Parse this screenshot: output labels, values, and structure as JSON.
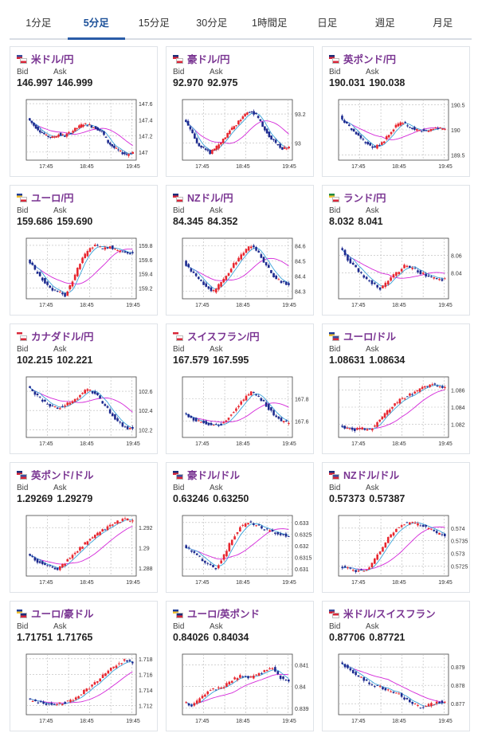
{
  "tabs": [
    {
      "label": "1分足",
      "active": false
    },
    {
      "label": "5分足",
      "active": true
    },
    {
      "label": "15分足",
      "active": false
    },
    {
      "label": "30分足",
      "active": false
    },
    {
      "label": "1時間足",
      "active": false
    },
    {
      "label": "日足",
      "active": false
    },
    {
      "label": "週足",
      "active": false
    },
    {
      "label": "月足",
      "active": false
    }
  ],
  "labels": {
    "bid": "Bid",
    "ask": "Ask"
  },
  "colors": {
    "up_candle": "#e8262f",
    "down_candle": "#1d2a8f",
    "ma_short": "#3aa3d9",
    "ma_long": "#d428d9",
    "pair_text": "#7a3592",
    "active_tab": "#1a4f98"
  },
  "cards": [
    {
      "pair": "米ドル/円",
      "flags": [
        "us",
        "jp"
      ],
      "bid": "146.997",
      "ask": "146.999"
    },
    {
      "pair": "豪ドル/円",
      "flags": [
        "au",
        "jp"
      ],
      "bid": "92.970",
      "ask": "92.975"
    },
    {
      "pair": "英ポンド/円",
      "flags": [
        "gb",
        "jp"
      ],
      "bid": "190.031",
      "ask": "190.038"
    },
    {
      "pair": "ユーロ/円",
      "flags": [
        "eu",
        "jp"
      ],
      "bid": "159.686",
      "ask": "159.690"
    },
    {
      "pair": "NZドル/円",
      "flags": [
        "nz",
        "jp"
      ],
      "bid": "84.345",
      "ask": "84.352"
    },
    {
      "pair": "ランド/円",
      "flags": [
        "za",
        "jp"
      ],
      "bid": "8.032",
      "ask": "8.041"
    },
    {
      "pair": "カナダドル/円",
      "flags": [
        "ca",
        "jp"
      ],
      "bid": "102.215",
      "ask": "102.221"
    },
    {
      "pair": "スイスフラン/円",
      "flags": [
        "ch",
        "jp"
      ],
      "bid": "167.579",
      "ask": "167.595"
    },
    {
      "pair": "ユーロ/ドル",
      "flags": [
        "eu",
        "us"
      ],
      "bid": "1.08631",
      "ask": "1.08634"
    },
    {
      "pair": "英ポンド/ドル",
      "flags": [
        "gb",
        "us"
      ],
      "bid": "1.29269",
      "ask": "1.29279"
    },
    {
      "pair": "豪ドル/ドル",
      "flags": [
        "au",
        "us"
      ],
      "bid": "0.63246",
      "ask": "0.63250"
    },
    {
      "pair": "NZドル/ドル",
      "flags": [
        "nz",
        "us"
      ],
      "bid": "0.57373",
      "ask": "0.57387"
    },
    {
      "pair": "ユーロ/豪ドル",
      "flags": [
        "eu",
        "au"
      ],
      "bid": "1.71751",
      "ask": "1.71765"
    },
    {
      "pair": "ユーロ/英ポンド",
      "flags": [
        "eu",
        "gb"
      ],
      "bid": "0.84026",
      "ask": "0.84034"
    },
    {
      "pair": "米ドル/スイスフラン",
      "flags": [
        "us",
        "ch"
      ],
      "bid": "0.87706",
      "ask": "0.87721"
    }
  ],
  "chart_data": [
    {
      "type": "line",
      "title": "米ドル/円",
      "x_ticks": [
        "17:45",
        "18:45",
        "19:45"
      ],
      "y_ticks": [
        147,
        147.2,
        147.4,
        147.6
      ],
      "ylim": [
        146.9,
        147.65
      ],
      "grid": true,
      "series": [
        {
          "values": [
            147.42,
            147.33,
            147.26,
            147.2,
            147.18,
            147.22,
            147.2,
            147.25,
            147.3,
            147.35,
            147.33,
            147.3,
            147.25,
            147.12,
            147.05,
            147.0,
            146.97,
            147.0
          ]
        }
      ]
    },
    {
      "type": "line",
      "title": "豪ドル/円",
      "x_ticks": [
        "17:45",
        "18:45",
        "19:45"
      ],
      "y_ticks": [
        93,
        93.2
      ],
      "ylim": [
        92.88,
        93.3
      ],
      "grid": true,
      "series": [
        {
          "values": [
            93.17,
            93.1,
            93.0,
            92.96,
            92.93,
            92.97,
            93.02,
            93.08,
            93.13,
            93.18,
            93.22,
            93.19,
            93.12,
            93.05,
            93.0,
            92.96,
            92.97
          ]
        }
      ]
    },
    {
      "type": "line",
      "title": "英ポンド/円",
      "x_ticks": [
        "17:45",
        "18:45",
        "19:45"
      ],
      "y_ticks": [
        189.5,
        190,
        190.5
      ],
      "ylim": [
        189.4,
        190.6
      ],
      "grid": true,
      "series": [
        {
          "values": [
            190.28,
            190.1,
            189.95,
            189.82,
            189.72,
            189.65,
            189.75,
            189.9,
            190.08,
            190.15,
            190.05,
            190.0,
            189.98,
            190.0,
            190.03,
            190.03
          ]
        }
      ]
    },
    {
      "type": "line",
      "title": "ユーロ/円",
      "x_ticks": [
        "17:45",
        "18:45",
        "19:45"
      ],
      "y_ticks": [
        159.2,
        159.4,
        159.6,
        159.8
      ],
      "ylim": [
        159.05,
        159.9
      ],
      "grid": true,
      "series": [
        {
          "values": [
            159.62,
            159.45,
            159.32,
            159.2,
            159.15,
            159.1,
            159.3,
            159.55,
            159.72,
            159.8,
            159.75,
            159.78,
            159.72,
            159.7,
            159.69
          ]
        }
      ]
    },
    {
      "type": "line",
      "title": "NZドル/円",
      "x_ticks": [
        "17:45",
        "18:45",
        "19:45"
      ],
      "y_ticks": [
        84.3,
        84.4,
        84.5,
        84.6
      ],
      "ylim": [
        84.25,
        84.65
      ],
      "grid": true,
      "series": [
        {
          "values": [
            84.5,
            84.43,
            84.38,
            84.33,
            84.3,
            84.36,
            84.43,
            84.5,
            84.56,
            84.6,
            84.55,
            84.47,
            84.4,
            84.36,
            84.34
          ]
        }
      ]
    },
    {
      "type": "line",
      "title": "ランド/円",
      "x_ticks": [
        "17:45",
        "18:45",
        "19:45"
      ],
      "y_ticks": [
        8.04,
        8.06
      ],
      "ylim": [
        8.01,
        8.08
      ],
      "grid": true,
      "series": [
        {
          "values": [
            8.07,
            8.055,
            8.045,
            8.035,
            8.028,
            8.022,
            8.03,
            8.04,
            8.048,
            8.045,
            8.04,
            8.036,
            8.033,
            8.032
          ]
        }
      ]
    },
    {
      "type": "line",
      "title": "カナダドル/円",
      "x_ticks": [
        "17:45",
        "18:45",
        "19:45"
      ],
      "y_ticks": [
        102.2,
        102.4,
        102.6
      ],
      "ylim": [
        102.12,
        102.75
      ],
      "grid": true,
      "series": [
        {
          "values": [
            102.65,
            102.58,
            102.5,
            102.45,
            102.42,
            102.45,
            102.5,
            102.56,
            102.62,
            102.58,
            102.48,
            102.38,
            102.28,
            102.22,
            102.21
          ]
        }
      ]
    },
    {
      "type": "line",
      "title": "スイスフラン/円",
      "x_ticks": [
        "17:45",
        "18:45",
        "19:45"
      ],
      "y_ticks": [
        167.6,
        167.8
      ],
      "ylim": [
        167.45,
        168.0
      ],
      "grid": true,
      "series": [
        {
          "values": [
            167.68,
            167.62,
            167.6,
            167.58,
            167.56,
            167.57,
            167.64,
            167.72,
            167.8,
            167.86,
            167.82,
            167.74,
            167.66,
            167.6,
            167.58
          ]
        }
      ]
    },
    {
      "type": "line",
      "title": "ユーロ/ドル",
      "x_ticks": [
        "17:45",
        "18:45",
        "19:45"
      ],
      "y_ticks": [
        1.082,
        1.084,
        1.086
      ],
      "ylim": [
        1.0805,
        1.0875
      ],
      "grid": true,
      "series": [
        {
          "values": [
            1.0818,
            1.0816,
            1.0814,
            1.0815,
            1.0813,
            1.0822,
            1.0832,
            1.0842,
            1.0848,
            1.0853,
            1.0857,
            1.0862,
            1.0866,
            1.0865,
            1.0863
          ]
        }
      ]
    },
    {
      "type": "line",
      "title": "英ポンド/ドル",
      "x_ticks": [
        "17:45",
        "18:45",
        "19:45"
      ],
      "y_ticks": [
        1.288,
        1.29,
        1.292
      ],
      "ylim": [
        1.2872,
        1.2932
      ],
      "grid": true,
      "series": [
        {
          "values": [
            1.2895,
            1.2888,
            1.2884,
            1.2881,
            1.2879,
            1.2885,
            1.2893,
            1.29,
            1.2906,
            1.2912,
            1.2917,
            1.2922,
            1.2926,
            1.2928,
            1.2927
          ]
        }
      ]
    },
    {
      "type": "line",
      "title": "豪ドル/ドル",
      "x_ticks": [
        "17:45",
        "18:45",
        "19:45"
      ],
      "y_ticks": [
        0.631,
        0.6315,
        0.632,
        0.6325,
        0.633
      ],
      "ylim": [
        0.6307,
        0.6333
      ],
      "grid": true,
      "series": [
        {
          "values": [
            0.632,
            0.6318,
            0.6315,
            0.6312,
            0.631,
            0.6316,
            0.6323,
            0.6328,
            0.633,
            0.6329,
            0.6327,
            0.6326,
            0.6325,
            0.6324
          ]
        }
      ]
    },
    {
      "type": "line",
      "title": "NZドル/ドル",
      "x_ticks": [
        "17:45",
        "18:45",
        "19:45"
      ],
      "y_ticks": [
        0.5725,
        0.573,
        0.5735,
        0.574
      ],
      "ylim": [
        0.5721,
        0.5745
      ],
      "grid": true,
      "series": [
        {
          "values": [
            0.5725,
            0.5724,
            0.5723,
            0.5723,
            0.5726,
            0.5731,
            0.5736,
            0.574,
            0.5742,
            0.5742,
            0.5741,
            0.574,
            0.5738,
            0.5737
          ]
        }
      ]
    },
    {
      "type": "line",
      "title": "ユーロ/豪ドル",
      "x_ticks": [
        "17:45",
        "18:45",
        "19:45"
      ],
      "y_ticks": [
        1.712,
        1.714,
        1.716,
        1.718
      ],
      "ylim": [
        1.7108,
        1.7186
      ],
      "grid": true,
      "series": [
        {
          "values": [
            1.7128,
            1.7125,
            1.7122,
            1.7121,
            1.7122,
            1.7125,
            1.713,
            1.7138,
            1.7146,
            1.7155,
            1.7164,
            1.7172,
            1.7178,
            1.7176
          ]
        }
      ]
    },
    {
      "type": "line",
      "title": "ユーロ/英ポンド",
      "x_ticks": [
        "17:45",
        "18:45",
        "19:45"
      ],
      "y_ticks": [
        0.839,
        0.84,
        0.841
      ],
      "ylim": [
        0.8387,
        0.8415
      ],
      "grid": true,
      "series": [
        {
          "values": [
            0.8393,
            0.8391,
            0.8394,
            0.8398,
            0.8399,
            0.84,
            0.8403,
            0.8405,
            0.8404,
            0.8405,
            0.8407,
            0.8409,
            0.8404,
            0.8402
          ]
        }
      ]
    },
    {
      "type": "line",
      "title": "米ドル/スイスフラン",
      "x_ticks": [
        "17:45",
        "18:45",
        "19:45"
      ],
      "y_ticks": [
        0.877,
        0.878,
        0.879
      ],
      "ylim": [
        0.8764,
        0.8797
      ],
      "grid": true,
      "series": [
        {
          "values": [
            0.8792,
            0.879,
            0.8786,
            0.8783,
            0.878,
            0.8779,
            0.8777,
            0.8776,
            0.8773,
            0.877,
            0.8768,
            0.8769,
            0.8771,
            0.8771
          ]
        }
      ]
    }
  ]
}
